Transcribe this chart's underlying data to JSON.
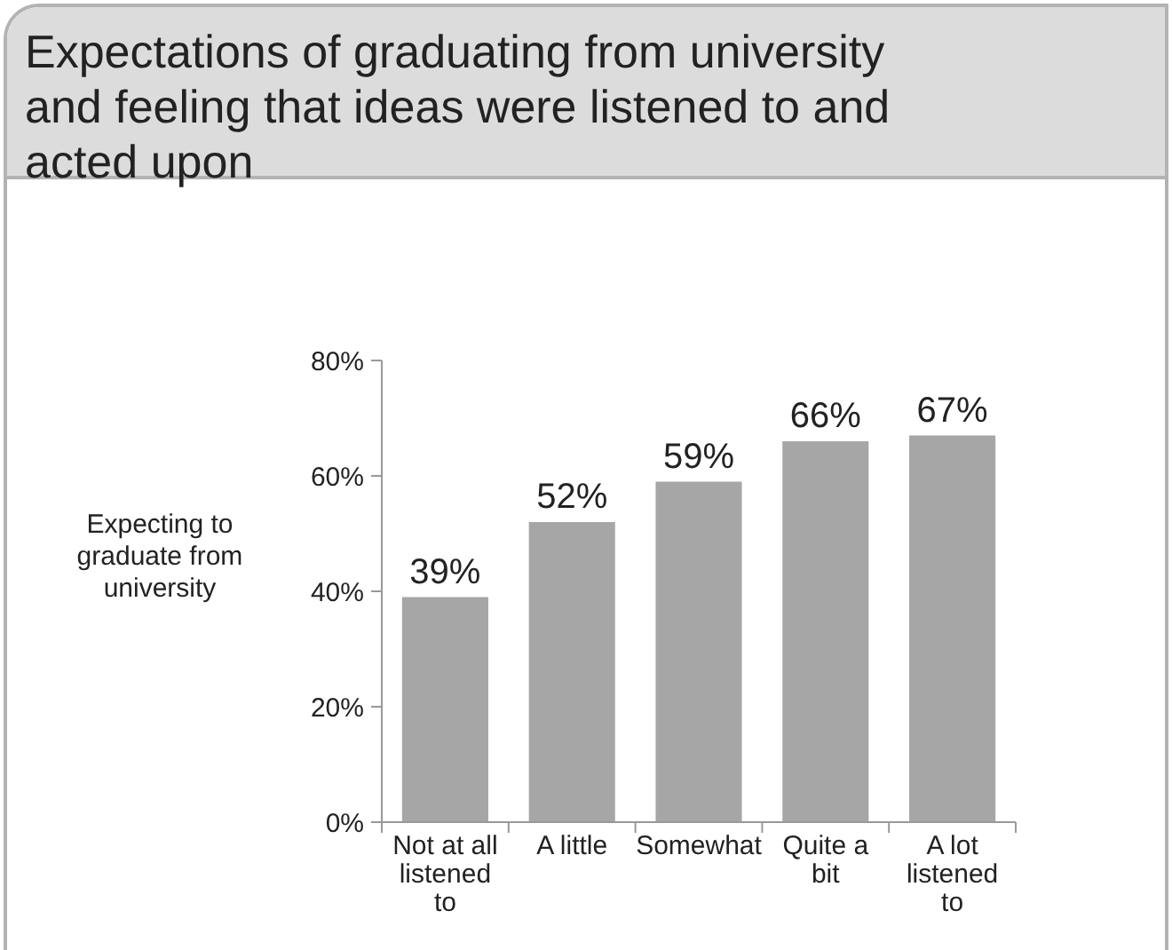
{
  "chart_data": {
    "type": "bar",
    "title": "Expectations of graduating from university and feeling that ideas were listened to and acted upon",
    "ylabel": "Expecting to graduate from university",
    "categories": [
      "Not at all listened to",
      "A little",
      "Somewhat",
      "Quite a bit",
      "A lot listened to"
    ],
    "values": [
      39,
      52,
      59,
      66,
      67
    ],
    "color": "#a6a6a6",
    "value_labels": [
      "39%",
      "52%",
      "59%",
      "66%",
      "67%"
    ],
    "ylim": [
      0,
      80
    ],
    "yticks": [
      {
        "value": 0,
        "label": "0%"
      },
      {
        "value": 20,
        "label": "20%"
      },
      {
        "value": 40,
        "label": "40%"
      },
      {
        "value": 60,
        "label": "60%"
      },
      {
        "value": 80,
        "label": "80%"
      }
    ],
    "grid": false
  }
}
